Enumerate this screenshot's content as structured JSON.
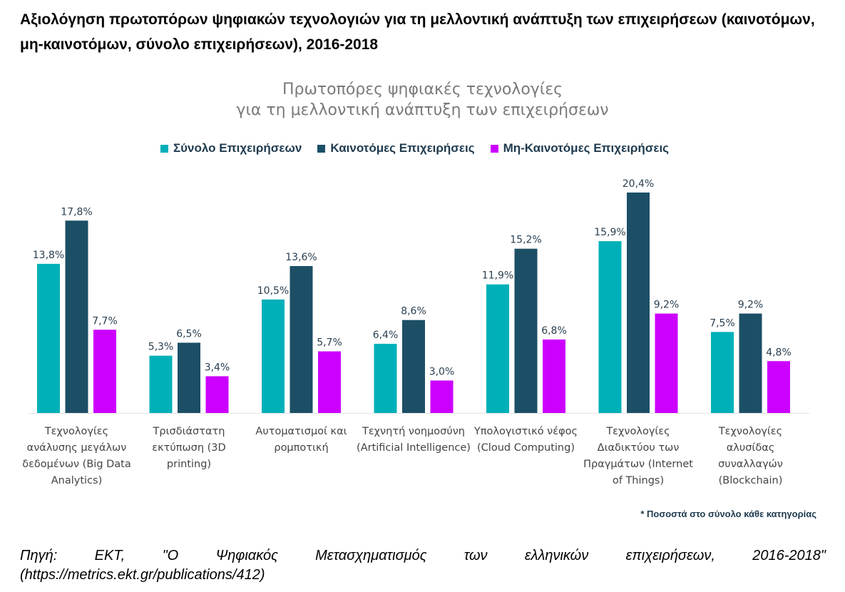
{
  "page": {
    "title": "Αξιολόγηση πρωτοπόρων ψηφιακών τεχνολογιών για τη μελλοντική ανάπτυξη των επιχειρήσεων (καινοτόμων, μη-καινοτόμων, σύνολο επιχειρήσεων), 2016-2018",
    "footnote": "* Ποσοστά στο σύνολο κάθε κατηγορίας",
    "source_line1": "Πηγή: ΕΚΤ, \"Ο Ψηφιακός Μετασχηματισμός των ελληνικών επιχειρήσεων, 2016-2018\"",
    "source_line2": "(https://metrics.ekt.gr/publications/412)"
  },
  "chart_data": {
    "type": "bar",
    "title_line1": "Πρωτοπόρες ψηφιακές τεχνολογίες",
    "title_line2": "για τη μελλοντική ανάπτυξη των επιχειρήσεων",
    "xlabel": "",
    "ylabel": "",
    "ylim": [
      0,
      21
    ],
    "grid": false,
    "legend_position": "top-center",
    "categories": [
      [
        "Τεχνολογίες",
        "ανάλυσης μεγάλων",
        "δεδομένων (Big Data",
        "Analytics)"
      ],
      [
        "Τρισδιάστατη",
        "εκτύπωση (3D",
        "printing)"
      ],
      [
        "Αυτοματισμοί και",
        "ρομποτική"
      ],
      [
        "Τεχνητή νοημοσύνη",
        "(Artificial Intelligence)"
      ],
      [
        "Υπολογιστικό νέφος",
        "(Cloud Computing)"
      ],
      [
        "Τεχνολογίες",
        "Διαδικτύου των",
        "Πραγμάτων (Internet",
        "of Things)"
      ],
      [
        "Τεχνολογίες",
        "αλυσίδας",
        "συναλλαγών",
        "(Blockchain)"
      ]
    ],
    "series": [
      {
        "name": "Σύνολο Επιχειρήσεων",
        "color": "#00b0b9",
        "values": [
          13.8,
          5.3,
          10.5,
          6.4,
          11.9,
          15.9,
          7.5
        ],
        "labels": [
          "13,8%",
          "5,3%",
          "10,5%",
          "6,4%",
          "11,9%",
          "15,9%",
          "7,5%"
        ]
      },
      {
        "name": "Καινοτόμες Επιχειρήσεις",
        "color": "#1c4f66",
        "values": [
          17.8,
          6.5,
          13.6,
          8.6,
          15.2,
          20.4,
          9.2
        ],
        "labels": [
          "17,8%",
          "6,5%",
          "13,6%",
          "8,6%",
          "15,2%",
          "20,4%",
          "9,2%"
        ]
      },
      {
        "name": "Μη-Καινοτόμες Επιχειρήσεις",
        "color": "#cc00ff",
        "values": [
          7.7,
          3.4,
          5.7,
          3.0,
          6.8,
          9.2,
          4.8
        ],
        "labels": [
          "7,7%",
          "3,4%",
          "5,7%",
          "3,0%",
          "6,8%",
          "9,2%",
          "4,8%"
        ]
      }
    ]
  }
}
